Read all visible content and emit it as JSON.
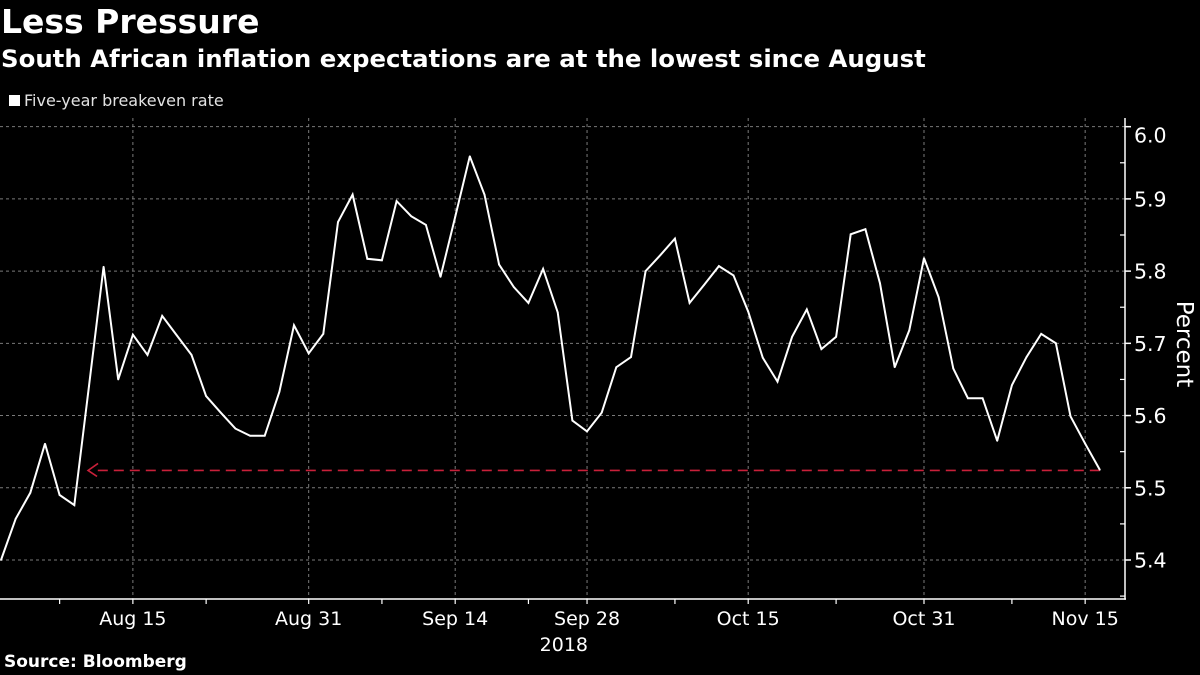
{
  "footer": {
    "source": "Source: Bloomberg"
  },
  "chart_data": {
    "type": "line",
    "title": "Less Pressure",
    "subtitle": "South African inflation expectations are at the lowest since August",
    "xlabel": "",
    "ylabel": "Percent",
    "y_axis_side": "right",
    "legend_position": "top-left",
    "grid": true,
    "grid_color": "#7a7a7a",
    "axis_color": "#ffffff",
    "ylim": [
      5.346,
      6.012
    ],
    "xlim": [
      -0.07,
      76.72
    ],
    "year_label": "2018",
    "x_ticks": [
      {
        "index": 9,
        "label": "Aug 15"
      },
      {
        "index": 21,
        "label": "Aug 31"
      },
      {
        "index": 31,
        "label": "Sep 14"
      },
      {
        "index": 40,
        "label": "Sep 28"
      },
      {
        "index": 51,
        "label": "Oct 15"
      },
      {
        "index": 63,
        "label": "Oct 31"
      },
      {
        "index": 74,
        "label": "Nov 15"
      }
    ],
    "x_minor_ticks": [
      4,
      14,
      26,
      36,
      46,
      57,
      69
    ],
    "y_ticks": [
      5.4,
      5.5,
      5.6,
      5.7,
      5.8,
      5.9,
      6.0
    ],
    "y_tick_labels": [
      "5.4",
      "5.5",
      "5.6",
      "5.7",
      "5.8",
      "5.9",
      "6.0"
    ],
    "y_minor_ticks": [
      5.35,
      5.45,
      5.55,
      5.65,
      5.75,
      5.85,
      5.95
    ],
    "series": [
      {
        "name": "Five-year breakeven rate",
        "color": "#ffffff",
        "values": [
          5.4,
          5.457,
          5.493,
          5.561,
          5.49,
          5.476,
          5.64,
          5.806,
          5.65,
          5.712,
          5.684,
          5.738,
          5.711,
          5.684,
          5.627,
          5.604,
          5.582,
          5.572,
          5.572,
          5.633,
          5.725,
          5.686,
          5.713,
          5.868,
          5.906,
          5.817,
          5.815,
          5.897,
          5.876,
          5.864,
          5.792,
          5.875,
          5.959,
          5.906,
          5.809,
          5.778,
          5.756,
          5.803,
          5.743,
          5.593,
          5.578,
          5.604,
          5.667,
          5.681,
          5.8,
          5.822,
          5.845,
          5.756,
          5.781,
          5.807,
          5.794,
          5.744,
          5.68,
          5.647,
          5.709,
          5.747,
          5.692,
          5.709,
          5.851,
          5.858,
          5.783,
          5.667,
          5.718,
          5.818,
          5.764,
          5.665,
          5.624,
          5.624,
          5.565,
          5.642,
          5.681,
          5.713,
          5.7,
          5.599,
          5.561,
          5.525
        ]
      }
    ],
    "annotations": [
      {
        "type": "dashed-arrow",
        "value": 5.524,
        "from_index": 75,
        "to_index": 5.94,
        "color": "#c8203a"
      }
    ]
  }
}
